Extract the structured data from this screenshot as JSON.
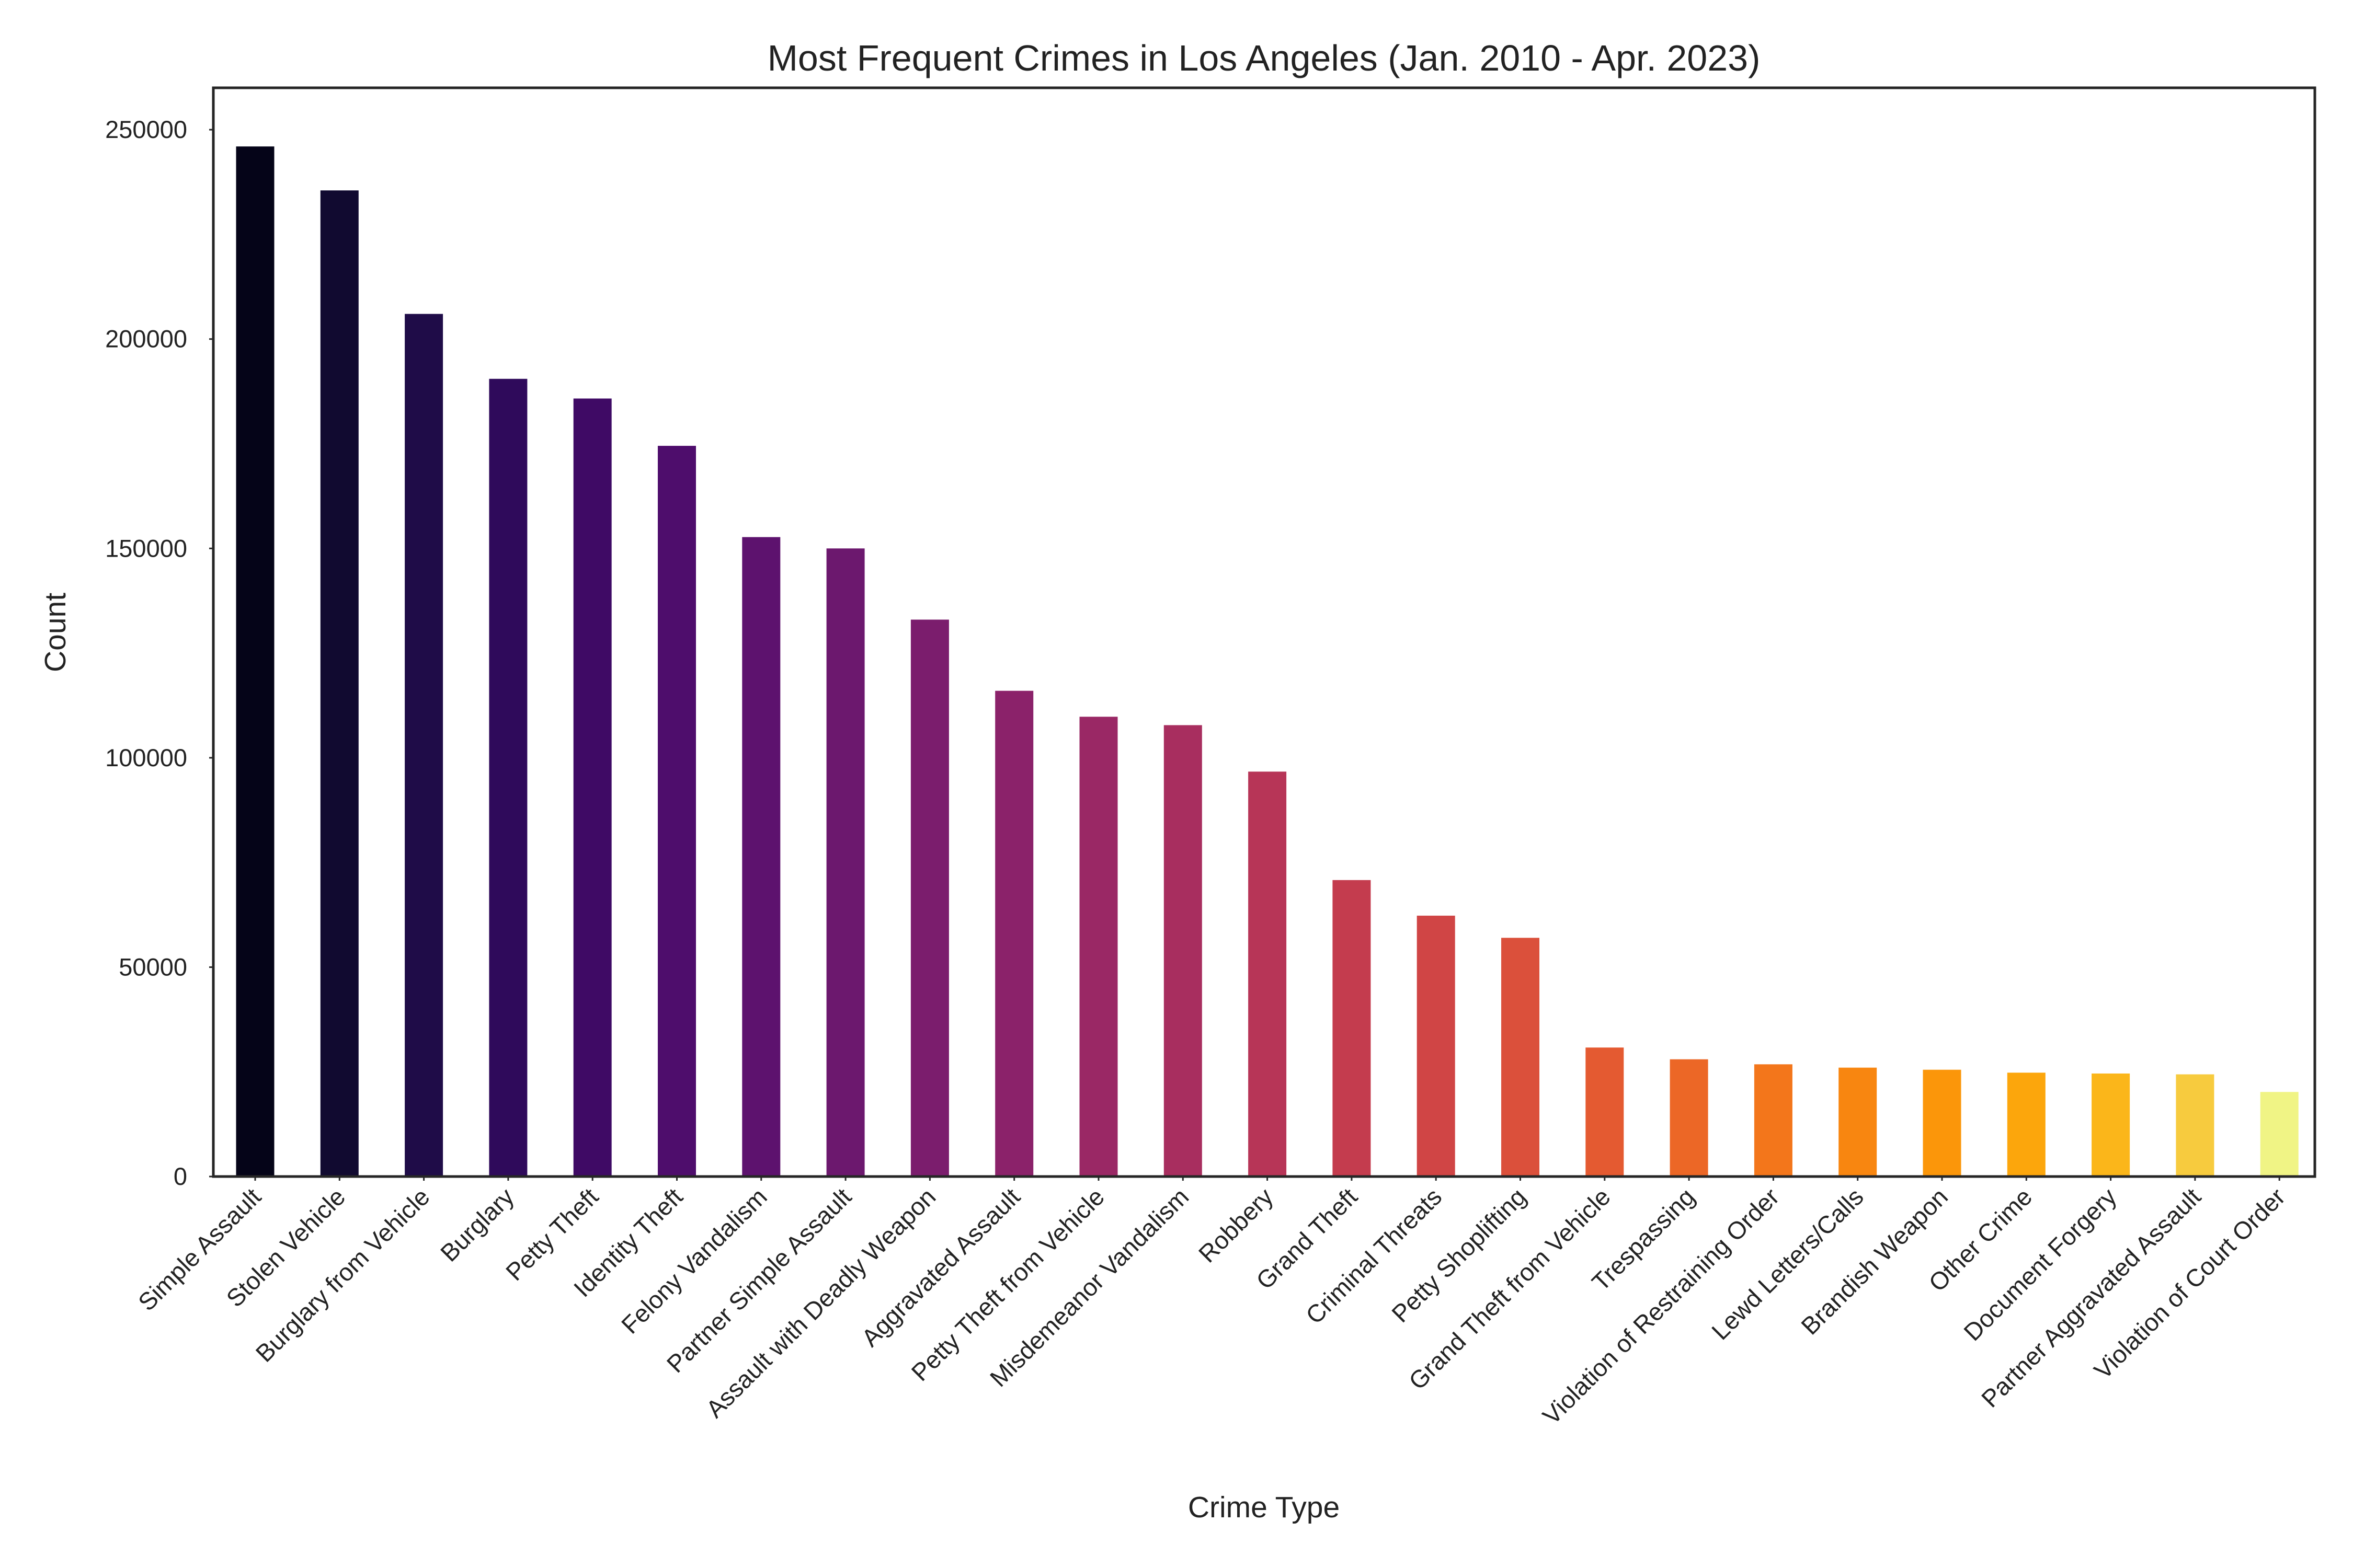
{
  "chart_data": {
    "type": "bar",
    "title": "Most Frequent Crimes in Los Angeles (Jan. 2010 - Apr. 2023)",
    "xlabel": "Crime Type",
    "ylabel": "Count",
    "ylim": [
      0,
      260000
    ],
    "yticks": [
      0,
      50000,
      100000,
      150000,
      200000,
      250000
    ],
    "grid": false,
    "legend": "none",
    "colormap": "inferno",
    "categories": [
      "Simple Assault",
      "Stolen Vehicle",
      "Burglary from Vehicle",
      "Burglary",
      "Petty Theft",
      "Identity Theft",
      "Felony Vandalism",
      "Partner Simple Assault",
      "Assault with Deadly Weapon",
      "Aggravated Assault",
      "Petty Theft from Vehicle",
      "Misdemeanor Vandalism",
      "Robbery",
      "Grand Theft",
      "Criminal Threats",
      "Petty Shoplifting",
      "Grand Theft from Vehicle",
      "Trespassing",
      "Violation of Restraining Order",
      "Lewd Letters/Calls",
      "Brandish Weapon",
      "Other Crime",
      "Document Forgery",
      "Partner Aggravated Assault",
      "Violation of Court Order"
    ],
    "values": [
      246000,
      235500,
      206000,
      190500,
      185800,
      174500,
      152700,
      150000,
      133000,
      116000,
      109800,
      107800,
      96700,
      70800,
      62300,
      57000,
      30800,
      28000,
      26800,
      26000,
      25500,
      24800,
      24600,
      24400,
      20200
    ],
    "colors": [
      "#050418",
      "#110a30",
      "#1f0c48",
      "#2f0a5b",
      "#3f0a65",
      "#4e0d6c",
      "#5d126e",
      "#6c186e",
      "#7b1d6d",
      "#8b226a",
      "#9a2865",
      "#a82e5f",
      "#b73557",
      "#c43c4e",
      "#d04545",
      "#db503b",
      "#e45a31",
      "#ec6726",
      "#f3761b",
      "#f88610",
      "#fb960a",
      "#fca60c",
      "#fbb61a",
      "#f7cb3e",
      "#f0f485"
    ]
  }
}
